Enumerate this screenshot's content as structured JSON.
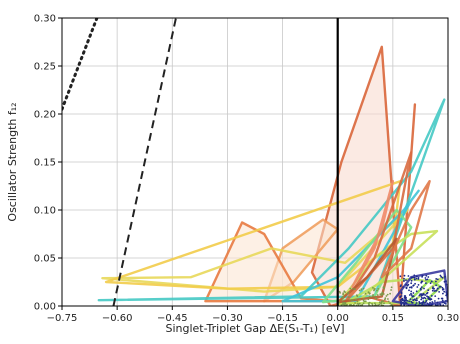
{
  "chart_data": {
    "type": "line",
    "title": "",
    "xlabel": "Singlet-Triplet Gap ΔE(S₁-T₁) [eV]",
    "ylabel": "Oscillator Strength f₁₂",
    "xlim": [
      -0.75,
      0.3
    ],
    "ylim": [
      0.0,
      0.3
    ],
    "xticks": [
      -0.75,
      -0.6,
      -0.45,
      -0.3,
      -0.15,
      0.0,
      0.15,
      0.3
    ],
    "xtick_labels": [
      "−0.75",
      "−0.60",
      "−0.45",
      "−0.30",
      "−0.15",
      "0.00",
      "0.15",
      "0.30"
    ],
    "yticks": [
      0.0,
      0.05,
      0.1,
      0.15,
      0.2,
      0.25,
      0.3
    ],
    "ytick_labels": [
      "0.00",
      "0.05",
      "0.10",
      "0.15",
      "0.20",
      "0.25",
      "0.30"
    ],
    "grid": true,
    "reference_lines": [
      {
        "style": "dotted",
        "color": "#222222",
        "x": [
          -0.75,
          -0.655
        ],
        "y": [
          0.205,
          0.3
        ]
      },
      {
        "style": "dashed",
        "color": "#222222",
        "x": [
          -0.61,
          -0.44
        ],
        "y": [
          0.0,
          0.3
        ]
      },
      {
        "style": "solid",
        "color": "#000000",
        "x": [
          0.0,
          0.0
        ],
        "y": [
          0.0,
          0.3
        ]
      }
    ],
    "series": [
      {
        "color": "#d9663a",
        "fill": "#f7d9cc",
        "x": [
          0.17,
          0.12,
          0.01,
          -0.07,
          -0.02,
          0.08,
          0.17,
          0.21,
          0.17
        ],
        "y": [
          0.0,
          0.27,
          0.15,
          0.035,
          0.0,
          0.01,
          0.0,
          0.21,
          0.0
        ]
      },
      {
        "color": "#f0a060",
        "fill": "#fbe3cf",
        "x": [
          -0.2,
          -0.12,
          0.0,
          -0.04,
          -0.15,
          -0.2
        ],
        "y": [
          0.005,
          0.025,
          0.08,
          0.09,
          0.06,
          0.005
        ]
      },
      {
        "color": "#e87a40",
        "fill": "#fbe3cf",
        "x": [
          -0.36,
          -0.26,
          -0.2,
          -0.1,
          -0.01,
          -0.36
        ],
        "y": [
          0.005,
          0.087,
          0.075,
          0.008,
          0.005,
          0.005
        ]
      },
      {
        "color": "#e8d85a",
        "fill": "none",
        "x": [
          -0.64,
          -0.4,
          -0.18,
          0.02,
          0.19,
          0.0,
          -0.2,
          -0.64
        ],
        "y": [
          0.029,
          0.03,
          0.06,
          0.045,
          0.1,
          0.02,
          0.015,
          0.029
        ]
      },
      {
        "color": "#f2cc4a",
        "fill": "none",
        "x": [
          -0.63,
          -0.3,
          0.0,
          0.15,
          0.17,
          -0.63
        ],
        "y": [
          0.025,
          0.018,
          0.02,
          0.065,
          0.13,
          0.025
        ]
      },
      {
        "color": "#45c9c4",
        "fill": "none",
        "x": [
          -0.65,
          -0.1,
          0.03,
          0.2,
          0.29,
          0.1,
          -0.65
        ],
        "y": [
          0.006,
          0.01,
          0.06,
          0.14,
          0.215,
          0.01,
          0.006
        ]
      },
      {
        "color": "#3fc4d8",
        "fill": "none",
        "x": [
          -0.15,
          0.0,
          0.18,
          0.22,
          0.2,
          0.05,
          -0.15
        ],
        "y": [
          0.005,
          0.03,
          0.1,
          0.12,
          0.11,
          0.005,
          0.005
        ]
      },
      {
        "color": "#7ee08a",
        "fill": "none",
        "x": [
          -0.04,
          0.05,
          0.16,
          0.2,
          0.1,
          -0.04
        ],
        "y": [
          0.004,
          0.045,
          0.1,
          0.082,
          0.01,
          0.004
        ]
      },
      {
        "color": "#b9e05a",
        "fill": "none",
        "x": [
          0.02,
          0.12,
          0.2,
          0.26,
          0.29,
          0.2,
          0.02
        ],
        "y": [
          0.003,
          0.025,
          0.028,
          0.025,
          0.03,
          0.003,
          0.003
        ]
      },
      {
        "color": "#c8e05a",
        "fill": "none",
        "x": [
          0.0,
          0.1,
          0.2,
          0.27,
          0.05,
          0.0
        ],
        "y": [
          0.002,
          0.05,
          0.075,
          0.078,
          0.003,
          0.002
        ]
      },
      {
        "color": "#d86a40",
        "fill": "none",
        "x": [
          0.02,
          0.1,
          0.2,
          0.15,
          0.02
        ],
        "y": [
          0.004,
          0.05,
          0.16,
          0.06,
          0.004
        ]
      },
      {
        "color": "#b85a30",
        "fill": "none",
        "x": [
          0.0,
          0.08,
          0.16,
          0.12,
          0.0
        ],
        "y": [
          0.004,
          0.03,
          0.07,
          0.01,
          0.004
        ]
      },
      {
        "color": "#e07848",
        "fill": "none",
        "x": [
          0.12,
          0.2,
          0.25,
          0.2,
          0.12
        ],
        "y": [
          0.03,
          0.06,
          0.13,
          0.1,
          0.03
        ]
      },
      {
        "color": "#f08a68",
        "fill": "none",
        "x": [
          0.04,
          0.12,
          0.15,
          0.1,
          0.04
        ],
        "y": [
          0.02,
          0.08,
          0.13,
          0.06,
          0.02
        ]
      },
      {
        "color": "#3a3aa0",
        "fill": "none",
        "x": [
          0.15,
          0.2,
          0.29,
          0.3,
          0.22,
          0.15
        ],
        "y": [
          0.005,
          0.03,
          0.037,
          0.005,
          0.0,
          0.005
        ]
      },
      {
        "color": "#8fdc4a",
        "fill": "none",
        "x": [
          0.19,
          0.22,
          0.25,
          0.28,
          0.23,
          0.19
        ],
        "y": [
          0.004,
          0.015,
          0.027,
          0.02,
          0.002,
          0.004
        ]
      }
    ],
    "scatter_clusters": [
      {
        "color": "#1e2a8a",
        "x_range": [
          0.17,
          0.3
        ],
        "y_range": [
          0.0,
          0.032
        ],
        "count": 240
      },
      {
        "color": "#7a9a4a",
        "x_range": [
          0.0,
          0.15
        ],
        "y_range": [
          0.0,
          0.02
        ],
        "count": 120
      }
    ]
  }
}
